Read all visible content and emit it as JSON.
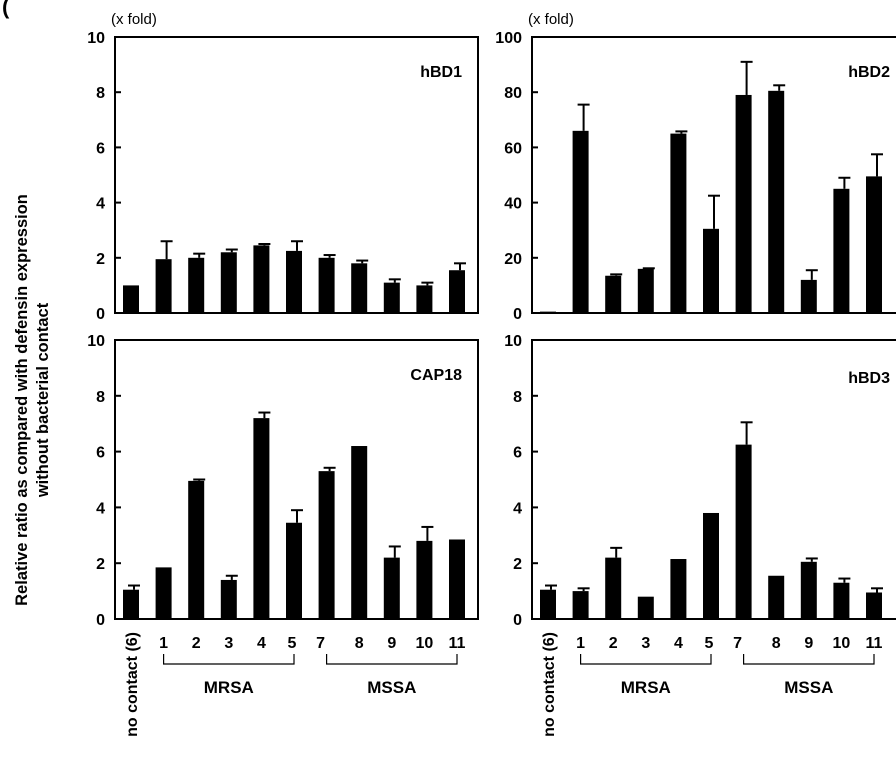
{
  "figure": {
    "panel_tag": "(",
    "ylabel_line1": "Relative ratio as compared with defensin expression",
    "ylabel_line2": "without  bacterial contact"
  },
  "xaxis": {
    "categories": [
      "no contact (6)",
      "1",
      "2",
      "3",
      "4",
      "5",
      "7",
      "8",
      "9",
      "10",
      "11"
    ],
    "groups": [
      {
        "label": "MRSA",
        "from": 1,
        "to": 5
      },
      {
        "label": "MSSA",
        "from": 6,
        "to": 10
      }
    ]
  },
  "chart_data": [
    {
      "type": "bar",
      "title": "hBD1",
      "unit_label": "(x fold)",
      "categories": [
        "no contact (6)",
        "1",
        "2",
        "3",
        "4",
        "5",
        "7",
        "8",
        "9",
        "10",
        "11"
      ],
      "values": [
        1.0,
        1.95,
        2.0,
        2.2,
        2.45,
        2.25,
        2.0,
        1.8,
        1.1,
        1.0,
        1.55
      ],
      "errors": [
        0.0,
        0.65,
        0.15,
        0.1,
        0.05,
        0.35,
        0.1,
        0.1,
        0.12,
        0.1,
        0.25
      ],
      "ylim": [
        0,
        10
      ],
      "yticks": [
        0,
        2,
        4,
        6,
        8,
        10
      ]
    },
    {
      "type": "bar",
      "title": "hBD2",
      "unit_label": "(x fold)",
      "categories": [
        "no contact (6)",
        "1",
        "2",
        "3",
        "4",
        "5",
        "7",
        "8",
        "9",
        "10",
        "11"
      ],
      "values": [
        0.5,
        66,
        13.5,
        16,
        65,
        30.5,
        79,
        80.5,
        12,
        45,
        49.5
      ],
      "errors": [
        0.0,
        9.5,
        0.5,
        0.2,
        0.8,
        12,
        12,
        2,
        3.5,
        4,
        8
      ],
      "ylim": [
        0,
        100
      ],
      "yticks": [
        0,
        20,
        40,
        60,
        80,
        100
      ]
    },
    {
      "type": "bar",
      "title": "CAP18",
      "unit_label": "",
      "categories": [
        "no contact (6)",
        "1",
        "2",
        "3",
        "4",
        "5",
        "7",
        "8",
        "9",
        "10",
        "11"
      ],
      "values": [
        1.05,
        1.85,
        4.95,
        1.4,
        7.2,
        3.45,
        5.3,
        6.2,
        2.2,
        2.8,
        2.85
      ],
      "errors": [
        0.15,
        0.0,
        0.05,
        0.15,
        0.2,
        0.45,
        0.12,
        0.0,
        0.4,
        0.5,
        0.0
      ],
      "ylim": [
        0,
        10
      ],
      "yticks": [
        0,
        2,
        4,
        6,
        8,
        10
      ]
    },
    {
      "type": "bar",
      "title": "hBD3",
      "unit_label": "",
      "categories": [
        "no contact (6)",
        "1",
        "2",
        "3",
        "4",
        "5",
        "7",
        "8",
        "9",
        "10",
        "11"
      ],
      "values": [
        1.05,
        1.0,
        2.2,
        0.8,
        2.15,
        3.8,
        6.25,
        1.55,
        2.05,
        1.3,
        0.95
      ],
      "errors": [
        0.15,
        0.1,
        0.35,
        0.0,
        0.0,
        0.0,
        0.8,
        0.0,
        0.12,
        0.15,
        0.15
      ],
      "ylim": [
        0,
        10
      ],
      "yticks": [
        0,
        2,
        4,
        6,
        8,
        10
      ]
    }
  ]
}
